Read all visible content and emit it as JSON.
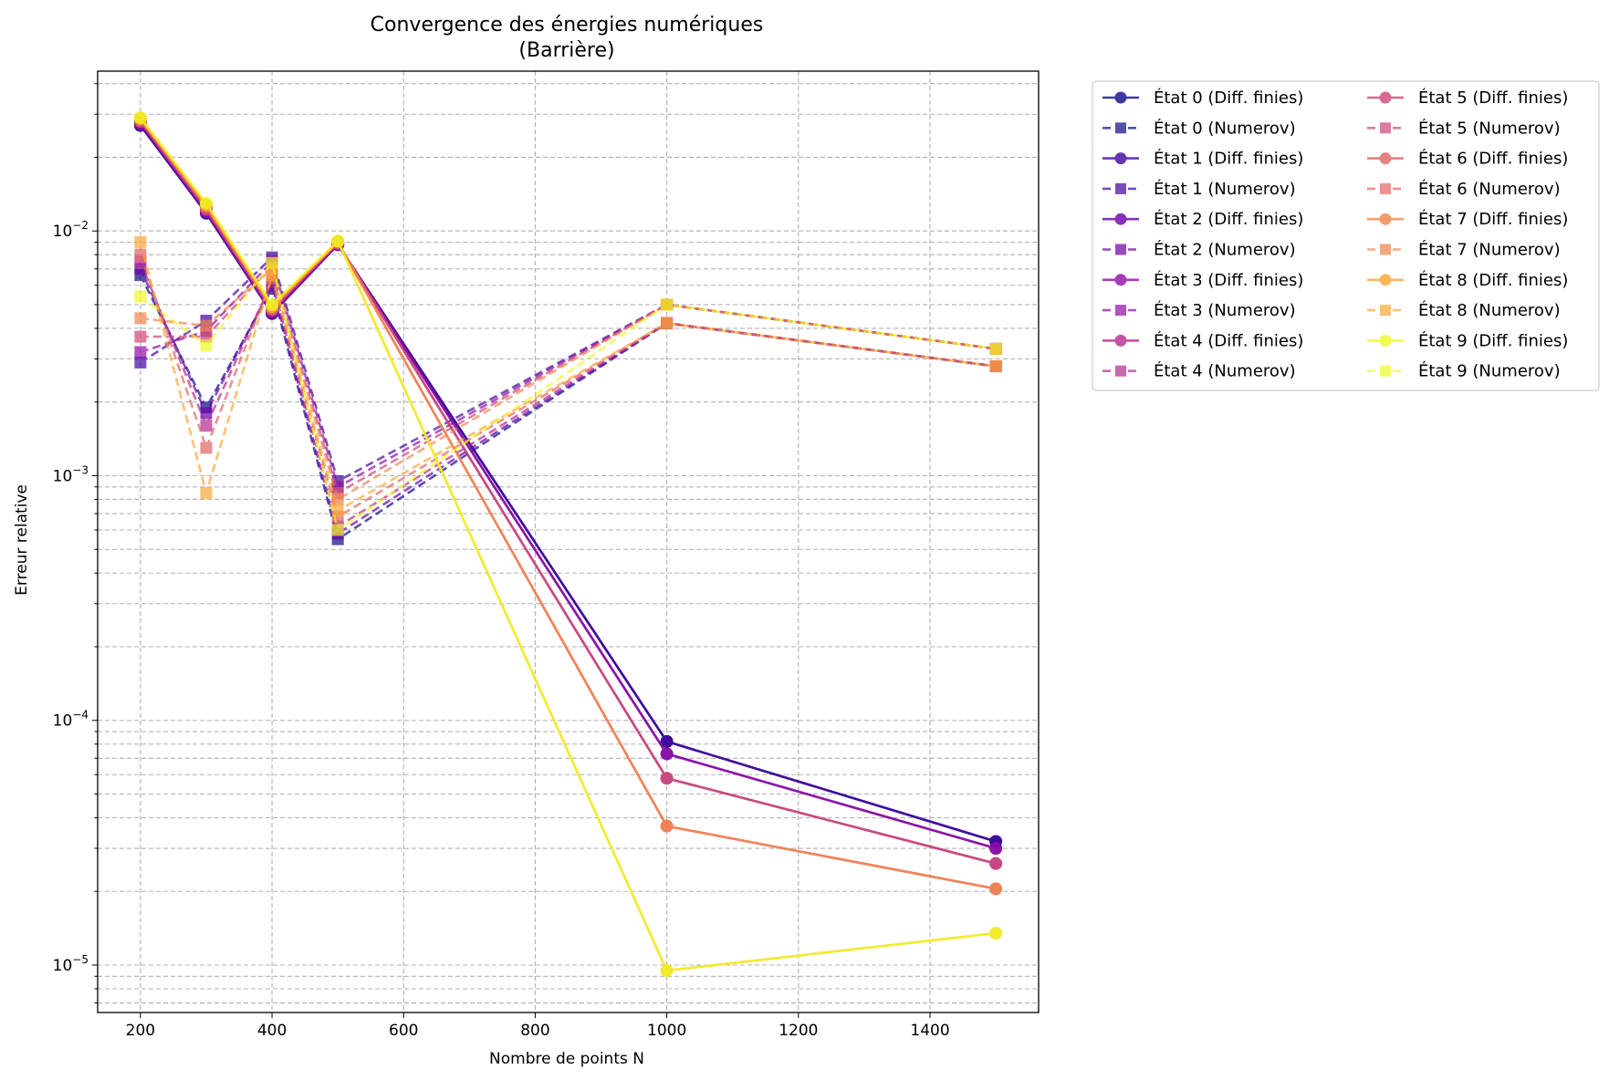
{
  "chart_data": {
    "type": "line",
    "title": "Convergence des énergies numériques",
    "subtitle": "(Barrière)",
    "xlabel": "Nombre de points N",
    "ylabel": "Erreur relative",
    "yscale": "log",
    "xlim": [
      135,
      1565
    ],
    "ylim": [
      6.4e-06,
      0.045
    ],
    "xticks": [
      200,
      400,
      600,
      800,
      1000,
      1200,
      1400
    ],
    "xtick_labels": [
      "200",
      "400",
      "600",
      "800",
      "1000",
      "1200",
      "1400"
    ],
    "yticks": [
      1e-05,
      0.0001,
      0.001,
      0.01
    ],
    "ytick_labels": [
      {
        "base": "10",
        "exp": "−5"
      },
      {
        "base": "10",
        "exp": "−4"
      },
      {
        "base": "10",
        "exp": "−3"
      },
      {
        "base": "10",
        "exp": "−2"
      }
    ],
    "grid": true,
    "legend_placement": "outside right, top, two columns",
    "x": [
      200,
      300,
      400,
      500,
      1000,
      1500
    ],
    "series": [
      {
        "name": "État 0 (Diff. finies)",
        "method": "fd",
        "color": "#0d0887",
        "values": [
          0.027,
          0.0118,
          0.0046,
          0.0088,
          8.2e-05,
          3.2e-05
        ]
      },
      {
        "name": "État 0 (Numerov)",
        "method": "numerov",
        "color": "#0d0887",
        "values": [
          0.0066,
          0.0019,
          0.0058,
          0.00055,
          0.0042,
          0.0028
        ]
      },
      {
        "name": "État 1 (Diff. finies)",
        "method": "fd",
        "color": "#41049d",
        "values": [
          0.027,
          0.0119,
          0.0046,
          0.0088,
          8.2e-05,
          3.2e-05
        ]
      },
      {
        "name": "État 1 (Numerov)",
        "method": "numerov",
        "color": "#41049d",
        "values": [
          0.0029,
          0.0043,
          0.0078,
          0.00095,
          0.005,
          0.0033
        ]
      },
      {
        "name": "État 2 (Diff. finies)",
        "method": "fd",
        "color": "#6a00a8",
        "values": [
          0.0275,
          0.012,
          0.0046,
          0.0088,
          7.3e-05,
          3e-05
        ]
      },
      {
        "name": "État 2 (Numerov)",
        "method": "numerov",
        "color": "#6a00a8",
        "values": [
          0.007,
          0.0018,
          0.006,
          0.00058,
          0.0042,
          0.0028
        ]
      },
      {
        "name": "État 3 (Diff. finies)",
        "method": "fd",
        "color": "#8f0da4",
        "values": [
          0.0275,
          0.012,
          0.0047,
          0.0088,
          7.3e-05,
          3e-05
        ]
      },
      {
        "name": "État 3 (Numerov)",
        "method": "numerov",
        "color": "#8f0da4",
        "values": [
          0.0032,
          0.0039,
          0.0075,
          0.0009,
          0.005,
          0.0033
        ]
      },
      {
        "name": "État 4 (Diff. finies)",
        "method": "fd",
        "color": "#b12a90",
        "values": [
          0.028,
          0.0122,
          0.0047,
          0.0089,
          5.8e-05,
          2.6e-05
        ]
      },
      {
        "name": "État 4 (Numerov)",
        "method": "numerov",
        "color": "#b12a90",
        "values": [
          0.0075,
          0.0016,
          0.0062,
          0.00062,
          0.0042,
          0.0028
        ]
      },
      {
        "name": "État 5 (Diff. finies)",
        "method": "fd",
        "color": "#cc4778",
        "values": [
          0.028,
          0.0123,
          0.0048,
          0.0089,
          5.8e-05,
          2.6e-05
        ]
      },
      {
        "name": "État 5 (Numerov)",
        "method": "numerov",
        "color": "#cc4778",
        "values": [
          0.0037,
          0.0037,
          0.0072,
          0.00085,
          0.005,
          0.0033
        ]
      },
      {
        "name": "État 6 (Diff. finies)",
        "method": "fd",
        "color": "#e16462",
        "values": [
          0.0285,
          0.0125,
          0.0048,
          0.009,
          3.7e-05,
          2.05e-05
        ]
      },
      {
        "name": "État 6 (Numerov)",
        "method": "numerov",
        "color": "#e16462",
        "values": [
          0.008,
          0.0013,
          0.0064,
          0.00068,
          0.0042,
          0.0028
        ]
      },
      {
        "name": "État 7 (Diff. finies)",
        "method": "fd",
        "color": "#f2844b",
        "values": [
          0.0285,
          0.0127,
          0.0049,
          0.009,
          3.7e-05,
          2.05e-05
        ]
      },
      {
        "name": "État 7 (Numerov)",
        "method": "numerov",
        "color": "#f2844b",
        "values": [
          0.0044,
          0.0041,
          0.007,
          0.0008,
          0.005,
          0.0033
        ]
      },
      {
        "name": "État 8 (Diff. finies)",
        "method": "fd",
        "color": "#fca636",
        "values": [
          0.029,
          0.0128,
          0.0049,
          0.0091,
          9.5e-06,
          1.35e-05
        ]
      },
      {
        "name": "État 8 (Numerov)",
        "method": "numerov",
        "color": "#fca636",
        "values": [
          0.009,
          0.00085,
          0.0066,
          0.00072,
          0.0042,
          0.0028
        ]
      },
      {
        "name": "État 9 (Diff. finies)",
        "method": "fd",
        "color": "#f0f921",
        "values": [
          0.029,
          0.013,
          0.005,
          0.0091,
          9.5e-06,
          1.35e-05
        ]
      },
      {
        "name": "État 9 (Numerov)",
        "method": "numerov",
        "color": "#f0f921",
        "values": [
          0.0054,
          0.0034,
          0.0074,
          0.0006,
          0.005,
          0.0033
        ]
      }
    ]
  }
}
